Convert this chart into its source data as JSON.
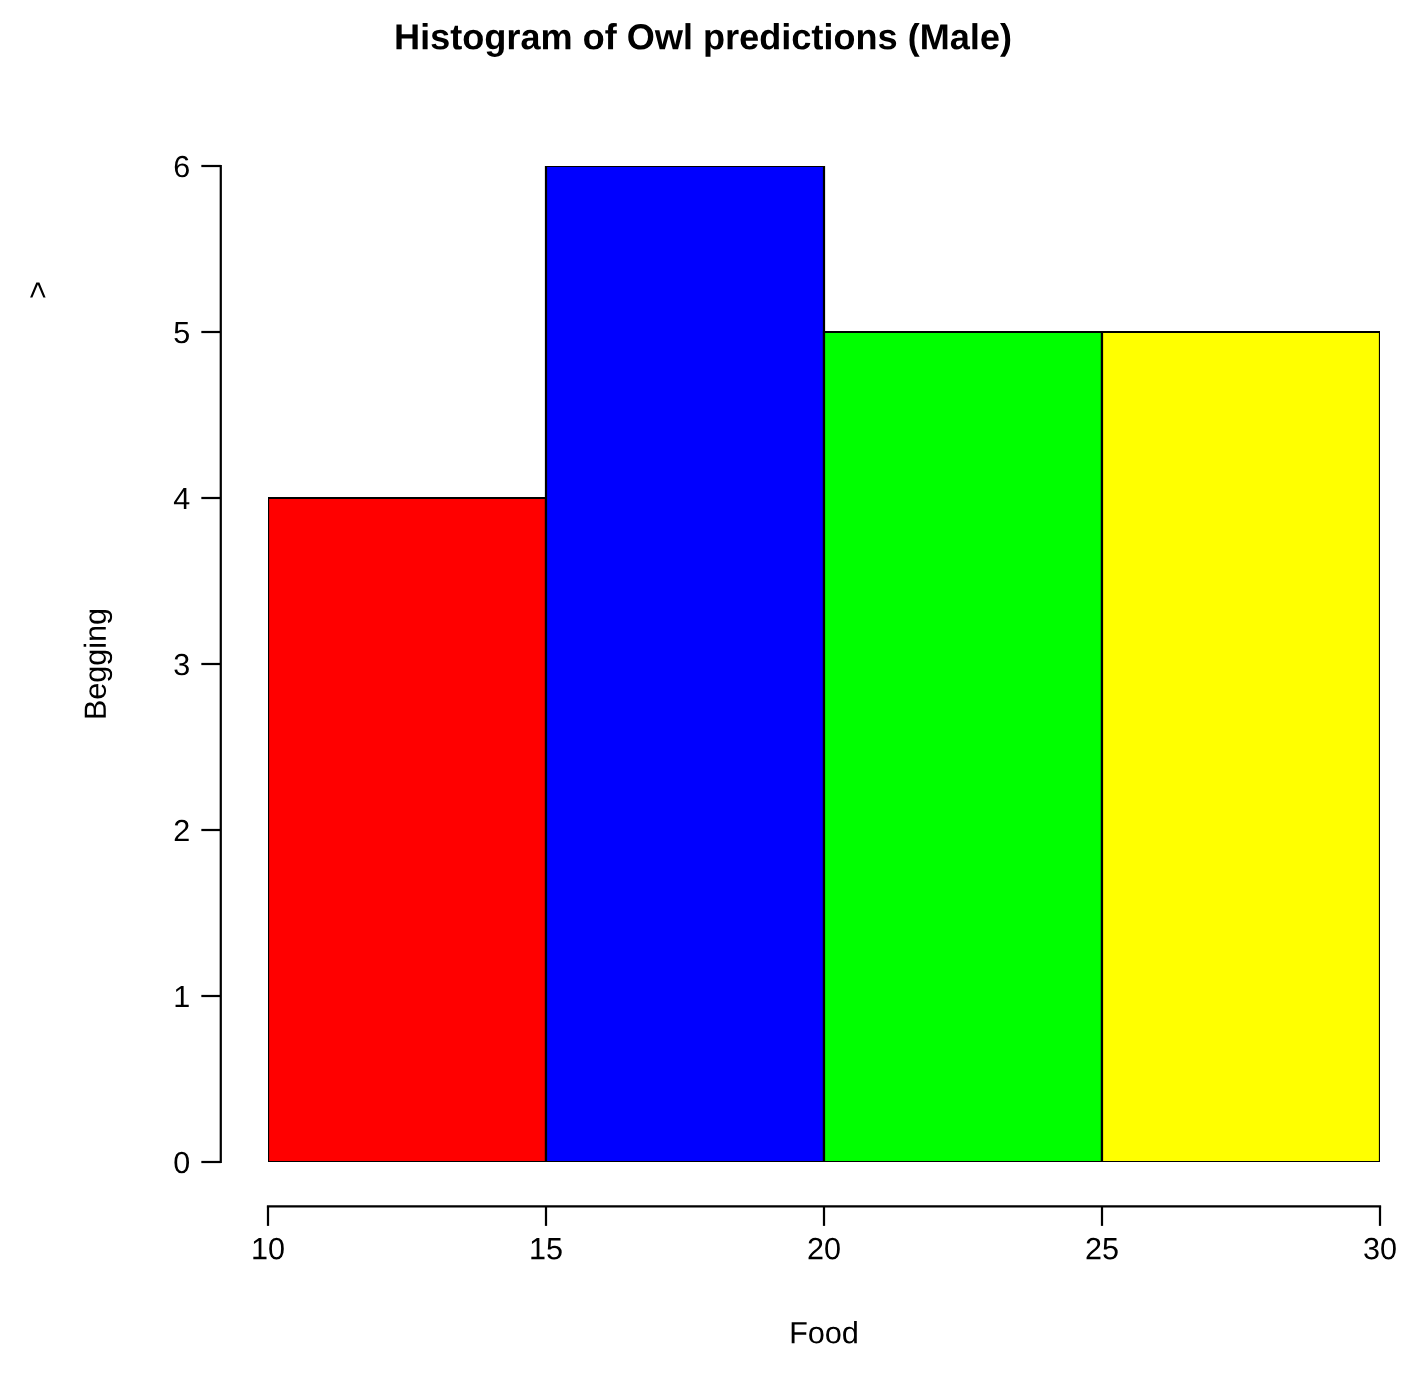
{
  "chart_data": {
    "type": "histogram",
    "title": "Histogram of Owl predictions (Male)",
    "xlabel": "Food",
    "ylabel": "Begging",
    "annotations": [
      ">"
    ],
    "bins": [
      10,
      15,
      20,
      25,
      30
    ],
    "values": [
      4,
      6,
      5,
      5
    ],
    "colors": [
      "#ff0000",
      "#0000ff",
      "#00ff00",
      "#ffff00"
    ],
    "xlim": [
      10,
      30
    ],
    "ylim": [
      0,
      6
    ],
    "xticks": [
      10,
      15,
      20,
      25,
      30
    ],
    "yticks": [
      0,
      1,
      2,
      3,
      4,
      5,
      6
    ],
    "grid": false,
    "legend": false
  }
}
